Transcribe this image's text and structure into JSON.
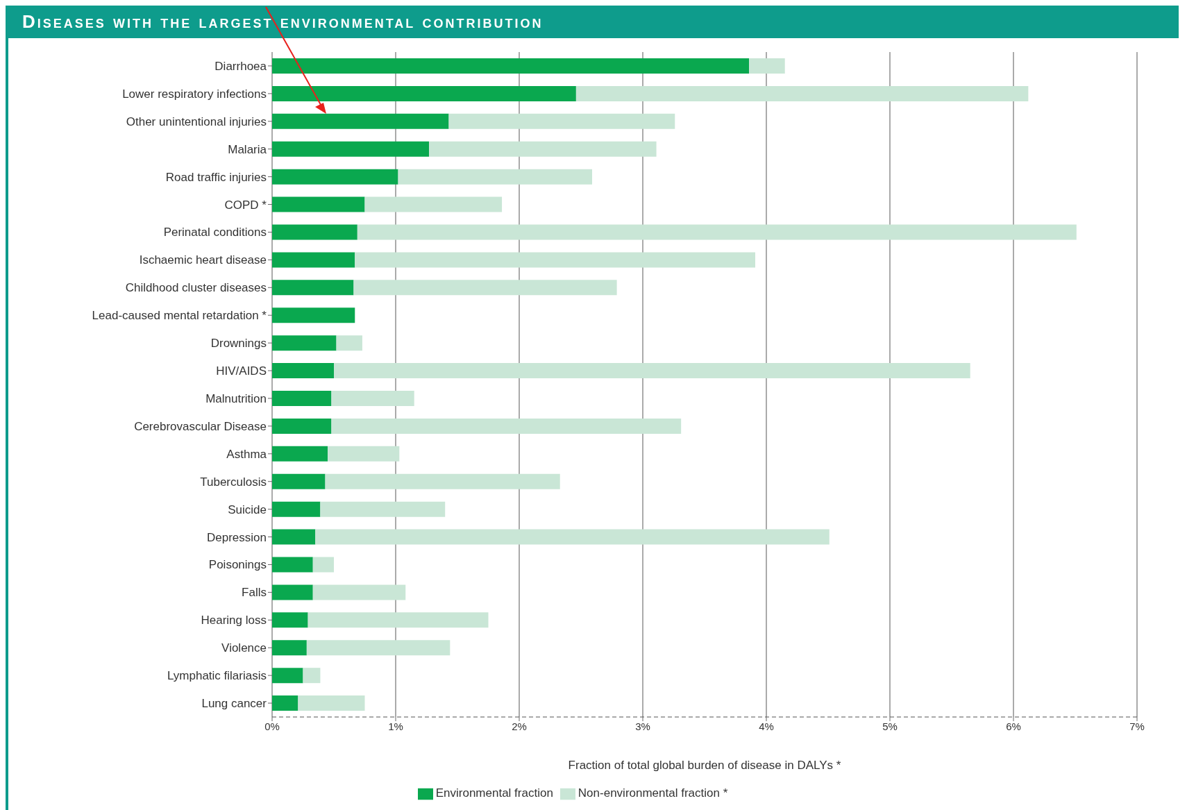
{
  "chart_data": {
    "type": "bar",
    "orientation": "horizontal",
    "stacked": true,
    "title": "Diseases with the largest environmental contribution",
    "xlabel": "Fraction of total global burden of disease in DALYs *",
    "categories": [
      "Diarrhoea",
      "Lower respiratory infections",
      "Other unintentional injuries",
      "Malaria",
      "Road traffic injuries",
      "COPD *",
      "Perinatal conditions",
      "Ischaemic heart disease",
      "Childhood cluster diseases",
      "Lead-caused mental retardation *",
      "Drownings",
      "HIV/AIDS",
      "Malnutrition",
      "Cerebrovascular Disease",
      "Asthma",
      "Tuberculosis",
      "Suicide",
      "Depression",
      "Poisonings",
      "Falls",
      "Hearing loss",
      "Violence",
      "Lymphatic filariasis",
      "Lung cancer"
    ],
    "series": [
      {
        "name": "Environmental fraction",
        "color": "#0aa84f",
        "values": [
          3.86,
          2.46,
          1.43,
          1.27,
          1.02,
          0.75,
          0.69,
          0.67,
          0.66,
          0.67,
          0.52,
          0.5,
          0.48,
          0.48,
          0.45,
          0.43,
          0.39,
          0.35,
          0.33,
          0.33,
          0.29,
          0.28,
          0.25,
          0.21
        ]
      },
      {
        "name": "Non-environmental fraction *",
        "color": "#c9e6d6",
        "values": [
          0.29,
          3.66,
          1.83,
          1.84,
          1.57,
          1.11,
          5.82,
          3.24,
          2.13,
          null,
          0.21,
          5.15,
          0.67,
          2.83,
          0.58,
          1.9,
          1.01,
          4.16,
          0.17,
          0.75,
          1.46,
          1.16,
          0.14,
          0.54
        ]
      }
    ],
    "xlim": [
      0,
      7
    ],
    "xticks": [
      {
        "value": 0,
        "label": "0%"
      },
      {
        "value": 1,
        "label": "1%"
      },
      {
        "value": 2,
        "label": "2%"
      },
      {
        "value": 3,
        "label": "3%"
      },
      {
        "value": 4,
        "label": "4%"
      },
      {
        "value": 5,
        "label": "5%"
      },
      {
        "value": 6,
        "label": "6%"
      },
      {
        "value": 7,
        "label": "7%"
      }
    ],
    "grid": "x",
    "legend": "bottom"
  }
}
